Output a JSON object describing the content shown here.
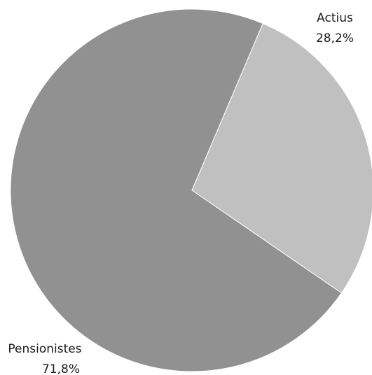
{
  "chart_data": {
    "type": "pie",
    "slices": [
      {
        "name": "Actius",
        "value": 28.2,
        "value_label": "28,2%",
        "color": "#c0c0c0"
      },
      {
        "name": "Pensionistes",
        "value": 71.8,
        "value_label": "71,8%",
        "color": "#919191"
      }
    ],
    "start_angle_deg": 23,
    "direction": "clockwise",
    "legend": "none"
  }
}
